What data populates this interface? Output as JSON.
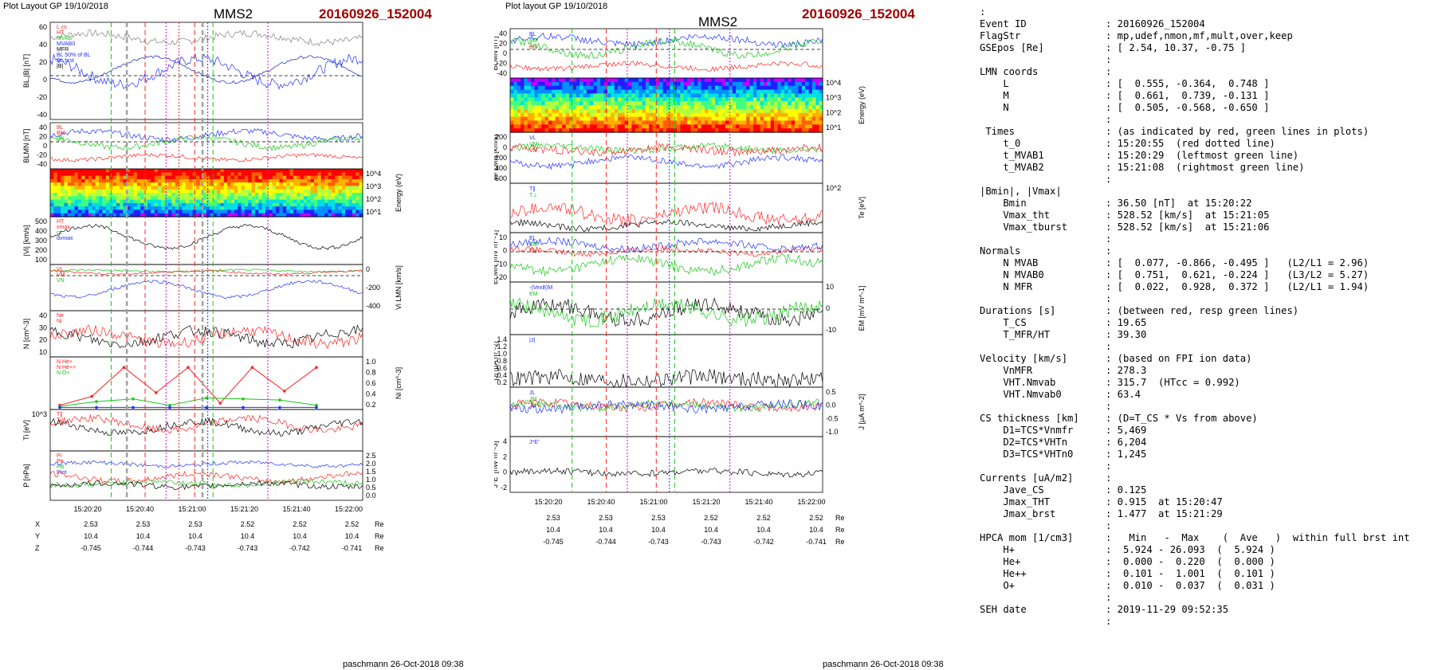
{
  "left_page": {
    "header_left": "Plot Layout GP 19/10/2018",
    "spacecraft": "MMS2",
    "event": "20160926_152004",
    "footer": "paschmann 26-Oct-2018 09:38"
  },
  "middle_page": {
    "header_left": "Plot layout GP 19/10/2018",
    "spacecraft": "MMS2",
    "event": "20160926_152004",
    "footer": "paschmann 26-Oct-2018 09:38"
  },
  "colors": {
    "l": "#1f2fff",
    "m": "#14c814",
    "n": "#ff2020",
    "black": "#000000",
    "magenta": "#e000e0",
    "dark_blue": "#1020c0",
    "gray": "#808080"
  },
  "chart_data": [
    {
      "type": "line",
      "id": "left_stack",
      "x_ticks": [
        "15:20:20",
        "15:20:40",
        "15:21:00",
        "15:21:20",
        "15:21:40",
        "15:22:00"
      ],
      "markers": {
        "green_dashed": [
          "15:20:29",
          "15:21:08"
        ],
        "red_dashed": [
          "15:20:42",
          "15:21:01"
        ],
        "red_dotted": [
          "15:20:55"
        ],
        "magenta_dotted": [
          "15:20:50",
          "15:21:29"
        ],
        "gray_dashed": [
          "15:20:35",
          "15:21:04"
        ],
        "blue_dotted": [
          "15:21:06"
        ]
      },
      "panels": [
        {
          "ylabel": "BL,|B| [nT]",
          "yticks": [
            "60",
            "40",
            "20",
            "0",
            "-20",
            "-40"
          ],
          "legend": [
            "L cs",
            "HT",
            "MVAB",
            "MVAB0",
            "MFR",
            "BL 50% of BL",
            "BL brst",
            "|B|"
          ]
        },
        {
          "ylabel": "BLMN [nT]",
          "yticks": [
            "40",
            "20",
            "0",
            "-20",
            "-40"
          ],
          "legend": [
            "BL",
            "BM",
            "BN"
          ]
        },
        {
          "ylabel": "Energy (eV)",
          "yticks": [
            "10^4",
            "10^3",
            "10^2",
            "10^1"
          ],
          "type": "spectrogram"
        },
        {
          "ylabel": "|Vi| [km/s]",
          "yticks": [
            "500",
            "400",
            "300",
            "200",
            "100"
          ],
          "legend": [
            "HT",
            "vmax",
            "cs",
            "dvmax"
          ]
        },
        {
          "ylabel": "Vi LMN [km/s]",
          "yticks": [
            "0",
            "-200",
            "-400"
          ],
          "legend": [
            "VL",
            "VM",
            "VN"
          ]
        },
        {
          "ylabel": "N [cm^-3]",
          "yticks": [
            "40",
            "30",
            "20",
            "10"
          ],
          "legend": [
            "Ne",
            "Ni"
          ]
        },
        {
          "ylabel": "Ni [cm^-3]",
          "yticks": [
            "1.0",
            "0.8",
            "0.6",
            "0.4",
            "0.2"
          ],
          "legend": [
            "N He+",
            "N He++",
            "N O+"
          ],
          "points": {
            "N He++": [
              0.08,
              0.25,
              0.8,
              0.32,
              0.8,
              0.12,
              0.8,
              0.35,
              0.8
            ],
            "N He+": [
              0.06,
              0.15,
              0.2,
              0.08,
              0.22,
              0.2,
              0.18,
              0.08
            ],
            "N O+": [
              0.04,
              0.04,
              0.04,
              0.04,
              0.04,
              0.04,
              0.04,
              0.04
            ]
          }
        },
        {
          "ylabel": "Ti [eV]",
          "yticks": [
            "10^3"
          ],
          "legend": [
            "T∥",
            "T⊥"
          ]
        },
        {
          "ylabel": "P [nPa]",
          "yticks": [
            "2.5",
            "2.0",
            "1.5",
            "1.0",
            "0.5",
            "0.0"
          ],
          "legend": [
            "Pi",
            "Pe",
            "PB",
            "Ptot"
          ]
        }
      ],
      "positions": {
        "rows": [
          "X",
          "Y",
          "Z"
        ],
        "values": [
          [
            "2.53",
            "2.53",
            "2.53",
            "2.52",
            "2.52",
            "2.52"
          ],
          [
            "10.4",
            "10.4",
            "10.4",
            "10.4",
            "10.4",
            "10.4"
          ],
          [
            "-0.745",
            "-0.744",
            "-0.743",
            "-0.743",
            "-0.742",
            "-0.741"
          ]
        ],
        "unit": "Re"
      }
    },
    {
      "type": "line",
      "id": "middle_stack",
      "x_ticks": [
        "15:20:20",
        "15:20:40",
        "15:21:00",
        "15:21:20",
        "15:21:40",
        "15:22:00"
      ],
      "panels": [
        {
          "ylabel": "BLMN [nT]",
          "yticks": [
            "40",
            "20",
            "0",
            "-20",
            "-40"
          ],
          "legend": [
            "BL",
            "BM",
            "BN"
          ]
        },
        {
          "ylabel": "Energy (eV)",
          "yticks": [
            "10^4",
            "10^3",
            "10^2",
            "10^1"
          ],
          "type": "spectrogram"
        },
        {
          "ylabel": "Ve LMN [km/s]",
          "yticks": [
            "200",
            "0",
            "-200",
            "-400",
            "-600"
          ],
          "legend": [
            "VL",
            "VM",
            "VN"
          ]
        },
        {
          "ylabel": "Te [eV]",
          "yticks": [
            "10^2"
          ],
          "legend": [
            "T∥",
            "T⊥"
          ]
        },
        {
          "ylabel": "ELMN [mV m^-1]",
          "yticks": [
            "10",
            "0",
            "-10",
            "-20"
          ],
          "legend": [
            "EL",
            "EM",
            "EN"
          ]
        },
        {
          "ylabel": "EM [mV m^-1]",
          "yticks": [
            "10",
            "0",
            "-10"
          ],
          "legend": [
            "-(VexB)M",
            "EM"
          ]
        },
        {
          "ylabel": "|J| [µA m^-2]",
          "yticks": [
            "1.4",
            "1.2",
            "1.0",
            "0.8",
            "0.6",
            "0.4",
            "0.2"
          ],
          "legend": [
            "|J|"
          ]
        },
        {
          "ylabel": "J [µA m^-2]",
          "yticks": [
            "0.5",
            "0.0",
            "-0.5",
            "-1.0"
          ],
          "legend": [
            "JL",
            "JM",
            "JN"
          ]
        },
        {
          "ylabel": "J*E' [nW m^-3]",
          "yticks": [
            "4",
            "2",
            "0",
            "-2"
          ],
          "legend": [
            "J*E'"
          ]
        }
      ],
      "positions": {
        "rows": [
          "X",
          "Y",
          "Z"
        ],
        "values": [
          [
            "2.53",
            "2.53",
            "2.53",
            "2.52",
            "2.52",
            "2.52"
          ],
          [
            "10.4",
            "10.4",
            "10.4",
            "10.4",
            "10.4",
            "10.4"
          ],
          [
            "-0.745",
            "-0.744",
            "-0.743",
            "-0.743",
            "-0.742",
            "-0.741"
          ]
        ],
        "unit": "Re"
      }
    }
  ],
  "info": {
    "top_mark": ":",
    "rows": [
      [
        "Event ID",
        ": 20160926_152004"
      ],
      [
        "FlagStr",
        ": mp,udef,nmon,mf,mult,over,keep"
      ],
      [
        "GSEpos [Re]",
        ": [ 2.54, 10.37, -0.75 ]"
      ],
      [
        "",
        ":"
      ],
      [
        "LMN coords",
        ":"
      ],
      [
        "    L",
        ": [  0.555, -0.364,  0.748 ]"
      ],
      [
        "    M",
        ": [  0.661,  0.739, -0.131 ]"
      ],
      [
        "    N",
        ": [  0.505, -0.568, -0.650 ]"
      ],
      [
        "",
        ":"
      ],
      [
        " Times",
        ": (as indicated by red, green lines in plots)"
      ],
      [
        "    t_0",
        ": 15:20:55  (red dotted line)"
      ],
      [
        "    t_MVAB1",
        ": 15:20:29  (leftmost green line)"
      ],
      [
        "    t_MVAB2",
        ": 15:21:08  (rightmost green line)"
      ],
      [
        "",
        ":"
      ],
      [
        "|Bmin|, |Vmax|",
        ""
      ],
      [
        "    Bmin",
        ": 36.50 [nT]  at 15:20:22"
      ],
      [
        "    Vmax_tht",
        ": 528.52 [km/s]  at 15:21:05"
      ],
      [
        "    Vmax_tburst",
        ": 528.52 [km/s]  at 15:21:06"
      ],
      [
        "",
        ":"
      ],
      [
        "Normals",
        ":"
      ],
      [
        "    N MVAB",
        ": [  0.077, -0.866, -0.495 ]   (L2/L1 = 2.96)"
      ],
      [
        "    N MVAB0",
        ": [  0.751,  0.621, -0.224 ]   (L3/L2 = 5.27)"
      ],
      [
        "    N MFR",
        ": [  0.022,  0.928,  0.372 ]   (L2/L1 = 1.94)"
      ],
      [
        "",
        ":"
      ],
      [
        "Durations [s]",
        ": (between red, resp green lines)"
      ],
      [
        "    T_CS",
        ": 19.65"
      ],
      [
        "    T_MFR/HT",
        ": 39.30"
      ],
      [
        "",
        ":"
      ],
      [
        "Velocity [km/s]",
        ": (based on FPI ion data)"
      ],
      [
        "    VnMFR",
        ": 278.3"
      ],
      [
        "    VHT.Nmvab",
        ": 315.7  (HTcc = 0.992)"
      ],
      [
        "    VHT.Nmvab0",
        ": 63.4"
      ],
      [
        "",
        ":"
      ],
      [
        "CS thickness [km]",
        ": (D=T_CS * Vs from above)"
      ],
      [
        "    D1=TCS*Vnmfr",
        ": 5,469"
      ],
      [
        "    D2=TCS*VHTn",
        ": 6,204"
      ],
      [
        "    D3=TCS*VHTn0",
        ": 1,245"
      ],
      [
        "",
        ":"
      ],
      [
        "Currents [uA/m2]",
        ":"
      ],
      [
        "    Jave_CS",
        ": 0.125"
      ],
      [
        "    Jmax_THT",
        ": 0.915  at 15:20:47"
      ],
      [
        "    Jmax_brst",
        ": 1.477  at 15:21:29"
      ],
      [
        "",
        ":"
      ],
      [
        "HPCA mom [1/cm3]",
        ":   Min   -  Max    (  Ave   )  within full brst int"
      ],
      [
        "    H+",
        ":  5.924 - 26.093  (  5.924 )"
      ],
      [
        "    He+",
        ":  0.000 -  0.220  (  0.000 )"
      ],
      [
        "    He++",
        ":  0.101 -  1.001  (  0.101 )"
      ],
      [
        "    O+",
        ":  0.010 -  0.037  (  0.031 )"
      ],
      [
        "",
        ":"
      ],
      [
        "SEH date",
        ": 2019-11-29 09:52:35"
      ],
      [
        "",
        ":"
      ]
    ]
  }
}
